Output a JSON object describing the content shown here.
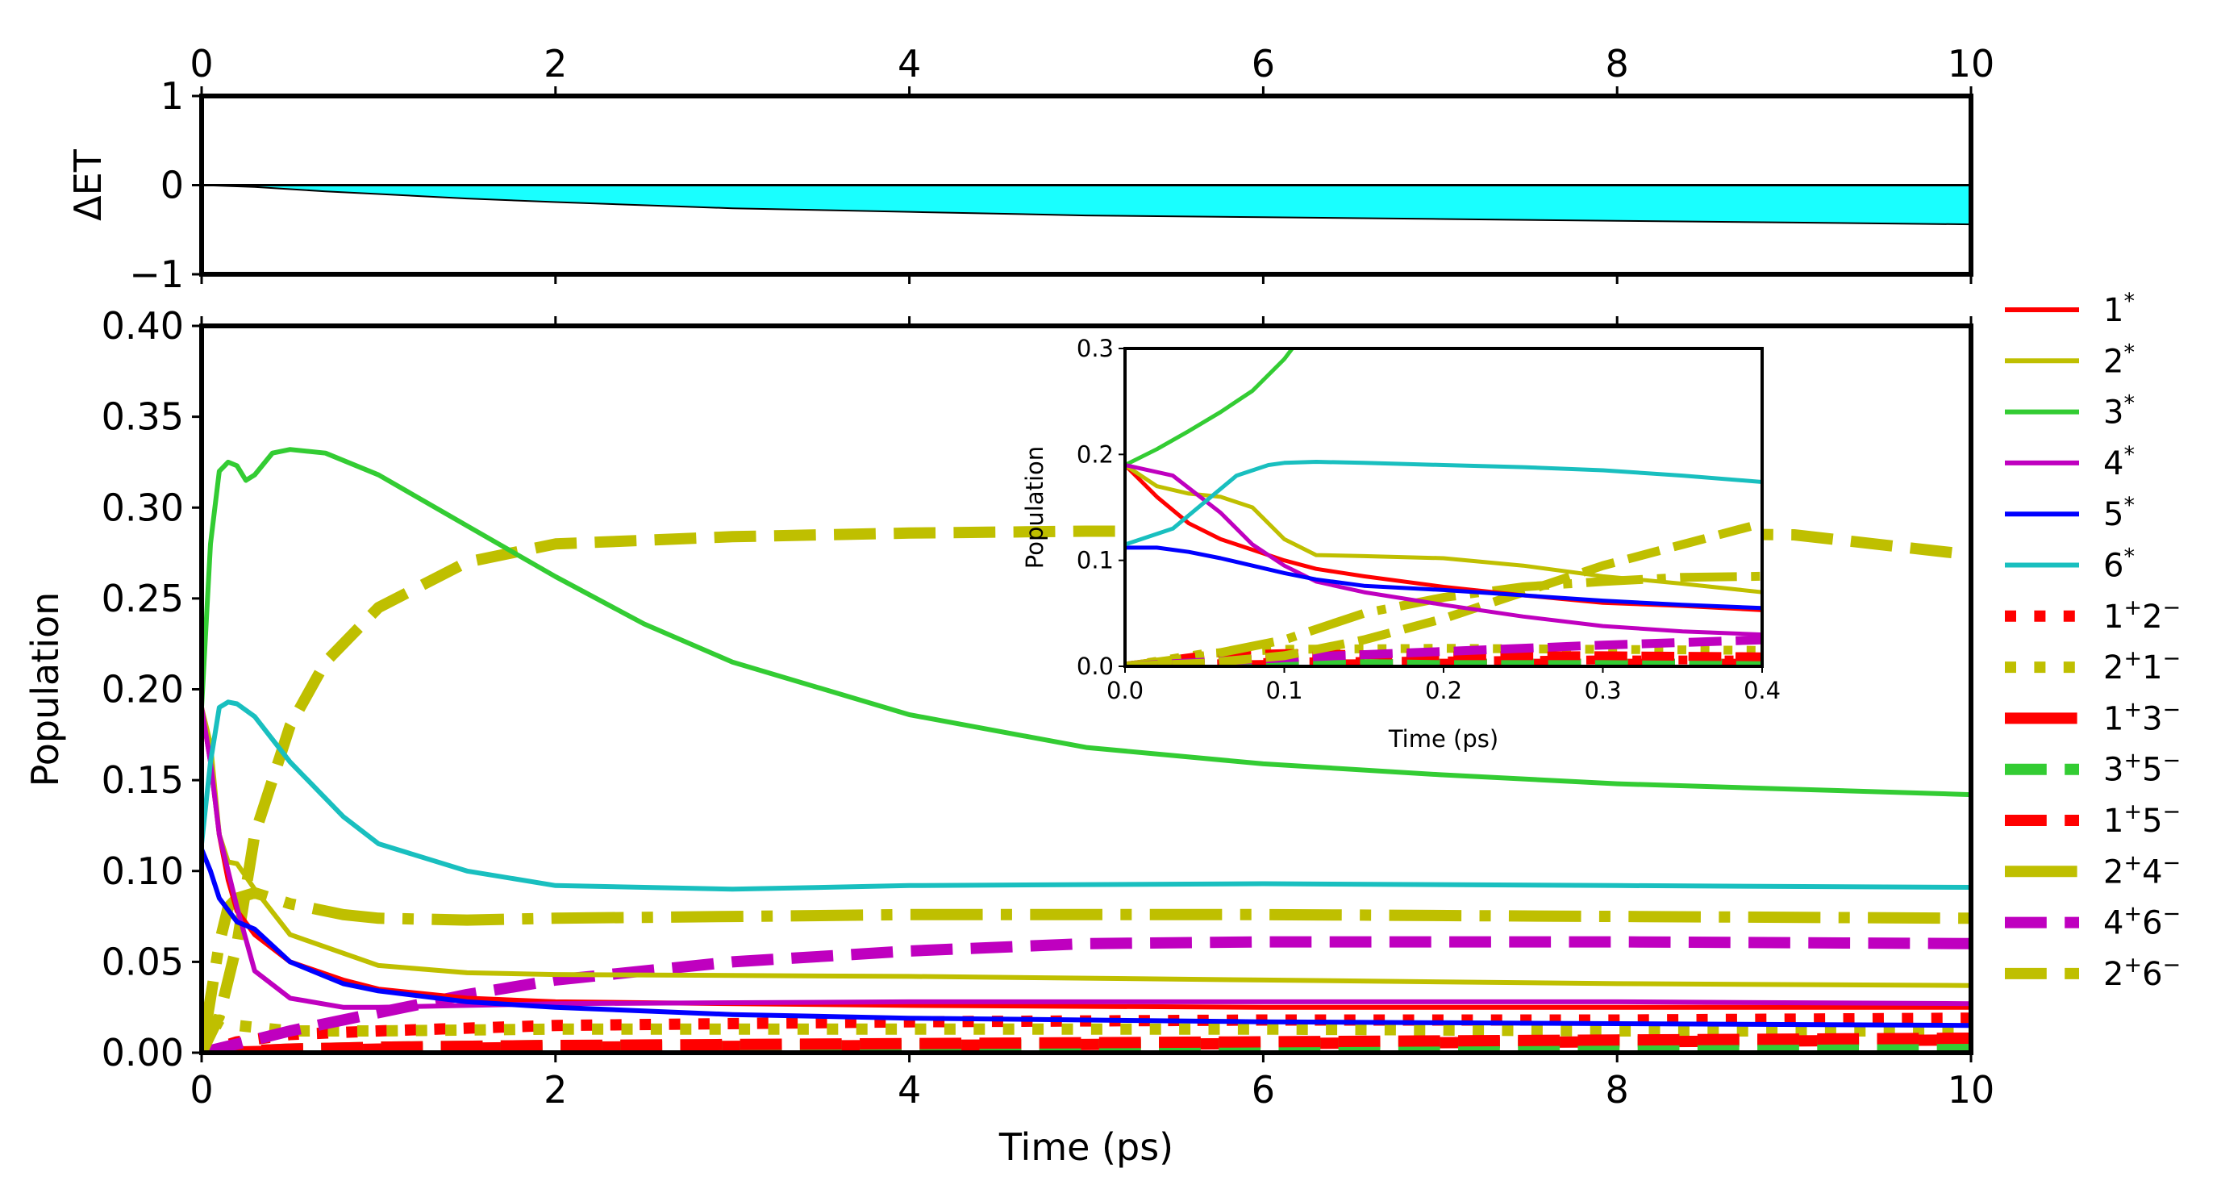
{
  "chart_data": [
    {
      "type": "area",
      "name": "delta-et",
      "ylabel": "ΔET",
      "xlim": [
        0,
        10
      ],
      "ylim": [
        -1,
        1
      ],
      "x_ticks": [
        "0",
        "2",
        "4",
        "6",
        "8",
        "10"
      ],
      "y_ticks": [
        "1",
        "0",
        "−1"
      ],
      "fill_color": "#19ffff",
      "series": [
        {
          "name": "ΔET",
          "x": [
            0,
            0.3,
            0.7,
            1,
            1.5,
            2,
            3,
            4,
            5,
            6,
            7,
            8,
            9,
            10
          ],
          "y": [
            0,
            -0.02,
            -0.07,
            -0.1,
            -0.15,
            -0.19,
            -0.26,
            -0.3,
            -0.34,
            -0.36,
            -0.38,
            -0.4,
            -0.42,
            -0.44
          ]
        }
      ]
    },
    {
      "type": "line",
      "name": "population-main",
      "xlabel": "Time (ps)",
      "ylabel": "Population",
      "xlim": [
        0,
        10
      ],
      "ylim": [
        0,
        0.4
      ],
      "x_ticks": [
        "0",
        "2",
        "4",
        "6",
        "8",
        "10"
      ],
      "y_ticks": [
        "0.00",
        "0.05",
        "0.10",
        "0.15",
        "0.20",
        "0.25",
        "0.30",
        "0.35",
        "0.40"
      ],
      "series": [
        {
          "name": "1*",
          "base": "1",
          "sup": "*",
          "color": "#ff0000",
          "style": "solid",
          "x": [
            0,
            0.05,
            0.1,
            0.15,
            0.2,
            0.3,
            0.5,
            0.8,
            1,
            1.5,
            2,
            4,
            6,
            8,
            10
          ],
          "y": [
            0.19,
            0.16,
            0.12,
            0.095,
            0.078,
            0.065,
            0.05,
            0.04,
            0.035,
            0.03,
            0.028,
            0.026,
            0.025,
            0.025,
            0.025
          ]
        },
        {
          "name": "2*",
          "base": "2",
          "sup": "*",
          "color": "#bfbf00",
          "style": "solid",
          "x": [
            0,
            0.05,
            0.1,
            0.15,
            0.2,
            0.3,
            0.5,
            1,
            1.5,
            2,
            4,
            6,
            8,
            10
          ],
          "y": [
            0.19,
            0.17,
            0.12,
            0.105,
            0.104,
            0.09,
            0.065,
            0.048,
            0.044,
            0.043,
            0.042,
            0.04,
            0.038,
            0.037
          ]
        },
        {
          "name": "3*",
          "base": "3",
          "sup": "*",
          "color": "#33cc33",
          "style": "solid",
          "x": [
            0,
            0.05,
            0.1,
            0.15,
            0.2,
            0.25,
            0.3,
            0.4,
            0.5,
            0.7,
            1,
            1.5,
            2,
            2.5,
            3,
            4,
            5,
            6,
            7,
            8,
            9,
            10
          ],
          "y": [
            0.19,
            0.28,
            0.32,
            0.325,
            0.323,
            0.315,
            0.318,
            0.33,
            0.332,
            0.33,
            0.318,
            0.29,
            0.262,
            0.236,
            0.215,
            0.186,
            0.168,
            0.159,
            0.153,
            0.148,
            0.145,
            0.142
          ]
        },
        {
          "name": "4*",
          "base": "4",
          "sup": "*",
          "color": "#bf00bf",
          "style": "solid",
          "x": [
            0,
            0.05,
            0.1,
            0.2,
            0.3,
            0.5,
            0.8,
            1,
            1.5,
            2,
            4,
            6,
            8,
            10
          ],
          "y": [
            0.19,
            0.16,
            0.12,
            0.08,
            0.045,
            0.03,
            0.025,
            0.025,
            0.026,
            0.027,
            0.028,
            0.028,
            0.028,
            0.027
          ]
        },
        {
          "name": "5*",
          "base": "5",
          "sup": "*",
          "color": "#0000ff",
          "style": "solid",
          "x": [
            0,
            0.05,
            0.1,
            0.2,
            0.3,
            0.5,
            0.8,
            1,
            1.5,
            2,
            3,
            4,
            6,
            8,
            10
          ],
          "y": [
            0.112,
            0.1,
            0.085,
            0.072,
            0.068,
            0.05,
            0.038,
            0.034,
            0.028,
            0.025,
            0.021,
            0.019,
            0.017,
            0.016,
            0.015
          ]
        },
        {
          "name": "6*",
          "base": "6",
          "sup": "*",
          "color": "#19bfbf",
          "style": "solid",
          "x": [
            0,
            0.05,
            0.1,
            0.15,
            0.2,
            0.3,
            0.5,
            0.8,
            1,
            1.5,
            2,
            2.5,
            3,
            4,
            6,
            8,
            10
          ],
          "y": [
            0.115,
            0.16,
            0.19,
            0.193,
            0.192,
            0.185,
            0.16,
            0.13,
            0.115,
            0.1,
            0.092,
            0.091,
            0.09,
            0.092,
            0.093,
            0.092,
            0.091
          ]
        },
        {
          "name": "1+2−",
          "base": "1",
          "sup": "+",
          "base2": "2",
          "sup2": "−",
          "color": "#ff0000",
          "style": "dotted",
          "x": [
            0,
            0.2,
            0.5,
            1,
            2,
            4,
            6,
            8,
            10
          ],
          "y": [
            0.0,
            0.006,
            0.01,
            0.012,
            0.015,
            0.017,
            0.018,
            0.018,
            0.019
          ]
        },
        {
          "name": "2+1−",
          "base": "2",
          "sup": "+",
          "base2": "1",
          "sup2": "−",
          "color": "#bfbf00",
          "style": "dotted",
          "x": [
            0,
            0.1,
            0.2,
            0.5,
            1,
            2,
            4,
            6,
            8,
            10
          ],
          "y": [
            0.0,
            0.018,
            0.015,
            0.012,
            0.012,
            0.013,
            0.013,
            0.013,
            0.012,
            0.012
          ]
        },
        {
          "name": "1+3−",
          "base": "1",
          "sup": "+",
          "base2": "3",
          "sup2": "−",
          "color": "#ff0000",
          "style": "dashdot",
          "x": [
            0,
            0.5,
            1,
            2,
            4,
            6,
            8,
            10
          ],
          "y": [
            0.0,
            0.001,
            0.002,
            0.003,
            0.004,
            0.005,
            0.006,
            0.007
          ]
        },
        {
          "name": "3+5−",
          "base": "3",
          "sup": "+",
          "base2": "5",
          "sup2": "−",
          "color": "#33cc33",
          "style": "dashed",
          "x": [
            0,
            0.5,
            1,
            2,
            4,
            6,
            8,
            10
          ],
          "y": [
            0.0,
            0.002,
            0.003,
            0.004,
            0.004,
            0.004,
            0.004,
            0.004
          ]
        },
        {
          "name": "1+5−",
          "base": "1",
          "sup": "+",
          "base2": "5",
          "sup2": "−",
          "color": "#ff0000",
          "style": "dashed",
          "x": [
            0,
            0.5,
            1,
            2,
            4,
            6,
            8,
            10
          ],
          "y": [
            0.0,
            0.002,
            0.003,
            0.004,
            0.005,
            0.006,
            0.007,
            0.008
          ]
        },
        {
          "name": "2+4−",
          "base": "2",
          "sup": "+",
          "base2": "4",
          "sup2": "−",
          "color": "#bfbf00",
          "style": "dashdot",
          "x": [
            0,
            0.05,
            0.1,
            0.15,
            0.2,
            0.3,
            0.5,
            0.8,
            1,
            1.5,
            2,
            3,
            4,
            6,
            8,
            10
          ],
          "y": [
            0.0,
            0.03,
            0.06,
            0.08,
            0.085,
            0.088,
            0.082,
            0.076,
            0.074,
            0.073,
            0.074,
            0.075,
            0.076,
            0.076,
            0.075,
            0.074
          ]
        },
        {
          "name": "4+6−",
          "base": "4",
          "sup": "+",
          "base2": "6",
          "sup2": "−",
          "color": "#bf00bf",
          "style": "dashed",
          "x": [
            0,
            0.5,
            1,
            1.5,
            2,
            3,
            4,
            5,
            6,
            8,
            10
          ],
          "y": [
            0.0,
            0.012,
            0.022,
            0.032,
            0.04,
            0.05,
            0.056,
            0.06,
            0.061,
            0.061,
            0.06
          ]
        },
        {
          "name": "2+6−",
          "base": "2",
          "sup": "+",
          "base2": "6",
          "sup2": "−",
          "color": "#bfbf00",
          "style": "dashed",
          "x": [
            0,
            0.1,
            0.2,
            0.3,
            0.5,
            0.7,
            1,
            1.5,
            2,
            3,
            4,
            5,
            6,
            7,
            8,
            9,
            10
          ],
          "y": [
            0.0,
            0.02,
            0.06,
            0.12,
            0.18,
            0.215,
            0.245,
            0.27,
            0.28,
            0.284,
            0.286,
            0.287,
            0.287,
            0.287,
            0.286,
            0.285,
            0.274
          ]
        }
      ]
    },
    {
      "type": "line",
      "name": "population-inset",
      "xlabel": "Time (ps)",
      "ylabel": "Population",
      "xlim": [
        0,
        0.4
      ],
      "ylim": [
        0,
        0.3
      ],
      "x_ticks": [
        "0.0",
        "0.1",
        "0.2",
        "0.3",
        "0.4"
      ],
      "y_ticks": [
        "0.0",
        "0.1",
        "0.2",
        "0.3"
      ],
      "series": [
        {
          "name": "1*",
          "color": "#ff0000",
          "style": "solid",
          "x": [
            0,
            0.02,
            0.04,
            0.06,
            0.08,
            0.1,
            0.12,
            0.15,
            0.2,
            0.25,
            0.3,
            0.35,
            0.4
          ],
          "y": [
            0.19,
            0.16,
            0.135,
            0.12,
            0.11,
            0.1,
            0.092,
            0.085,
            0.075,
            0.067,
            0.06,
            0.057,
            0.053
          ]
        },
        {
          "name": "2*",
          "color": "#bfbf00",
          "style": "solid",
          "x": [
            0,
            0.02,
            0.04,
            0.06,
            0.08,
            0.1,
            0.12,
            0.15,
            0.2,
            0.25,
            0.3,
            0.35,
            0.4
          ],
          "y": [
            0.19,
            0.17,
            0.163,
            0.16,
            0.15,
            0.12,
            0.105,
            0.104,
            0.102,
            0.095,
            0.085,
            0.078,
            0.07
          ]
        },
        {
          "name": "3*",
          "color": "#33cc33",
          "style": "solid",
          "x": [
            0,
            0.02,
            0.04,
            0.06,
            0.08,
            0.1,
            0.11
          ],
          "y": [
            0.19,
            0.205,
            0.222,
            0.24,
            0.26,
            0.29,
            0.31
          ]
        },
        {
          "name": "4*",
          "color": "#bf00bf",
          "style": "solid",
          "x": [
            0,
            0.03,
            0.06,
            0.08,
            0.1,
            0.12,
            0.15,
            0.2,
            0.25,
            0.3,
            0.35,
            0.4
          ],
          "y": [
            0.19,
            0.18,
            0.145,
            0.115,
            0.095,
            0.08,
            0.07,
            0.058,
            0.047,
            0.038,
            0.033,
            0.03
          ]
        },
        {
          "name": "5*",
          "color": "#0000ff",
          "style": "solid",
          "x": [
            0,
            0.02,
            0.04,
            0.06,
            0.08,
            0.1,
            0.12,
            0.15,
            0.2,
            0.25,
            0.3,
            0.35,
            0.4
          ],
          "y": [
            0.112,
            0.112,
            0.108,
            0.102,
            0.095,
            0.088,
            0.082,
            0.076,
            0.072,
            0.067,
            0.062,
            0.058,
            0.055
          ]
        },
        {
          "name": "6*",
          "color": "#19bfbf",
          "style": "solid",
          "x": [
            0,
            0.03,
            0.05,
            0.07,
            0.09,
            0.1,
            0.12,
            0.15,
            0.2,
            0.25,
            0.3,
            0.35,
            0.4
          ],
          "y": [
            0.115,
            0.13,
            0.155,
            0.18,
            0.19,
            0.192,
            0.193,
            0.192,
            0.19,
            0.188,
            0.185,
            0.18,
            0.174
          ]
        },
        {
          "name": "1+2−",
          "color": "#ff0000",
          "style": "dotted",
          "x": [
            0,
            0.1,
            0.2,
            0.3,
            0.4
          ],
          "y": [
            0.0,
            0.004,
            0.005,
            0.006,
            0.006
          ]
        },
        {
          "name": "2+1−",
          "color": "#bfbf00",
          "style": "dotted",
          "x": [
            0,
            0.05,
            0.1,
            0.2,
            0.3,
            0.4
          ],
          "y": [
            0.0,
            0.012,
            0.016,
            0.017,
            0.016,
            0.015
          ]
        },
        {
          "name": "1+3−",
          "color": "#ff0000",
          "style": "dashdot",
          "x": [
            0,
            0.1,
            0.2,
            0.3,
            0.4
          ],
          "y": [
            0.0,
            0.002,
            0.003,
            0.003,
            0.003
          ]
        },
        {
          "name": "3+5−",
          "color": "#33cc33",
          "style": "dashed",
          "x": [
            0,
            0.1,
            0.2,
            0.3,
            0.4
          ],
          "y": [
            0.0,
            0.002,
            0.003,
            0.003,
            0.003
          ]
        },
        {
          "name": "1+5−",
          "color": "#ff0000",
          "style": "dashed",
          "x": [
            0,
            0.05,
            0.1,
            0.2,
            0.3,
            0.4
          ],
          "y": [
            0.0,
            0.01,
            0.012,
            0.01,
            0.01,
            0.009
          ]
        },
        {
          "name": "2+4−",
          "color": "#bfbf00",
          "style": "dashdot",
          "x": [
            0,
            0.05,
            0.1,
            0.15,
            0.2,
            0.25,
            0.3,
            0.35,
            0.4
          ],
          "y": [
            0.0,
            0.01,
            0.025,
            0.05,
            0.065,
            0.075,
            0.08,
            0.084,
            0.085
          ]
        },
        {
          "name": "4+6−",
          "color": "#bf00bf",
          "style": "dashed",
          "x": [
            0,
            0.1,
            0.2,
            0.3,
            0.4
          ],
          "y": [
            0.0,
            0.008,
            0.014,
            0.02,
            0.025
          ]
        },
        {
          "name": "2+6−",
          "color": "#bfbf00",
          "style": "dashed",
          "x": [
            0,
            0.05,
            0.1,
            0.15,
            0.2,
            0.25,
            0.3,
            0.35,
            0.4
          ],
          "y": [
            0.0,
            0.003,
            0.01,
            0.025,
            0.045,
            0.07,
            0.095,
            0.115,
            0.135
          ]
        }
      ]
    }
  ]
}
